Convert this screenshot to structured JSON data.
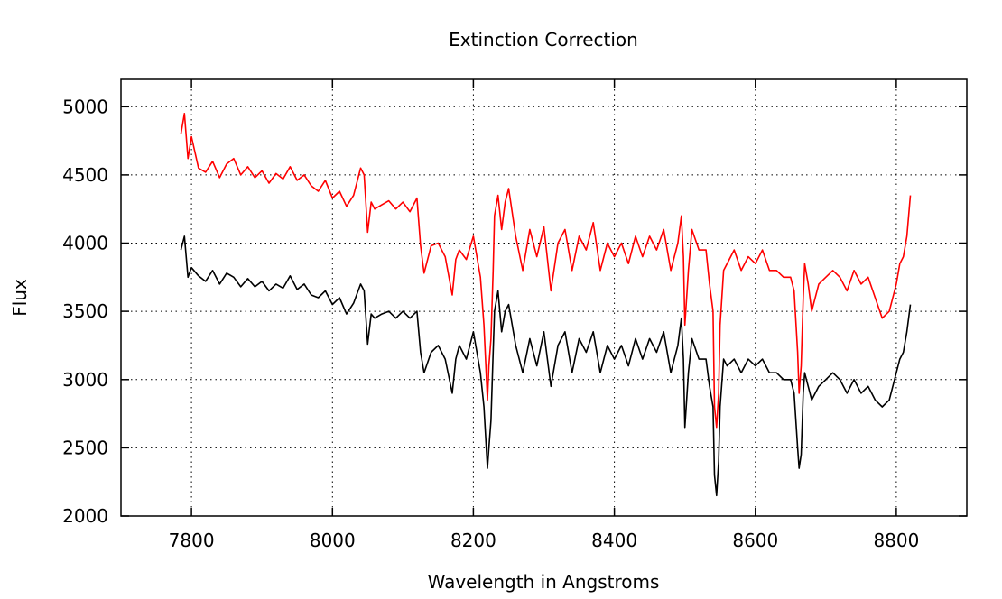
{
  "chart_data": {
    "type": "line",
    "title": "Extinction Correction",
    "xlabel": "Wavelength in Angstroms",
    "ylabel": "Flux",
    "xlim": [
      7700,
      8900
    ],
    "ylim": [
      2000,
      5200
    ],
    "xticks": [
      7800,
      8000,
      8200,
      8400,
      8600,
      8800
    ],
    "yticks": [
      2000,
      2500,
      3000,
      3500,
      4000,
      4500,
      5000
    ],
    "grid": true,
    "legend": "none",
    "series": [
      {
        "color": "#ff0000",
        "x": [
          7785,
          7790,
          7795,
          7800,
          7810,
          7820,
          7830,
          7840,
          7850,
          7860,
          7870,
          7880,
          7890,
          7900,
          7910,
          7920,
          7930,
          7940,
          7950,
          7960,
          7970,
          7980,
          7990,
          8000,
          8010,
          8020,
          8030,
          8040,
          8045,
          8050,
          8055,
          8060,
          8070,
          8080,
          8090,
          8100,
          8110,
          8120,
          8125,
          8130,
          8140,
          8150,
          8160,
          8170,
          8175,
          8180,
          8190,
          8200,
          8205,
          8210,
          8215,
          8220,
          8222,
          8225,
          8228,
          8230,
          8235,
          8240,
          8245,
          8250,
          8260,
          8270,
          8280,
          8290,
          8300,
          8310,
          8320,
          8330,
          8340,
          8350,
          8360,
          8370,
          8380,
          8390,
          8400,
          8410,
          8420,
          8430,
          8440,
          8450,
          8460,
          8470,
          8480,
          8490,
          8495,
          8498,
          8500,
          8505,
          8510,
          8520,
          8530,
          8535,
          8540,
          8542,
          8545,
          8548,
          8550,
          8555,
          8560,
          8570,
          8580,
          8590,
          8600,
          8610,
          8620,
          8630,
          8640,
          8650,
          8655,
          8660,
          8662,
          8665,
          8668,
          8670,
          8675,
          8680,
          8690,
          8700,
          8710,
          8720,
          8730,
          8740,
          8750,
          8760,
          8770,
          8780,
          8790,
          8800,
          8805,
          8810,
          8815,
          8820
        ],
        "y": [
          4800,
          4950,
          4620,
          4780,
          4550,
          4520,
          4600,
          4480,
          4580,
          4620,
          4500,
          4560,
          4480,
          4530,
          4440,
          4510,
          4470,
          4560,
          4460,
          4500,
          4420,
          4380,
          4460,
          4330,
          4380,
          4270,
          4350,
          4550,
          4500,
          4080,
          4300,
          4250,
          4280,
          4310,
          4250,
          4300,
          4230,
          4330,
          3980,
          3780,
          3980,
          4000,
          3900,
          3620,
          3880,
          3950,
          3880,
          4050,
          3900,
          3750,
          3400,
          2850,
          3100,
          3300,
          3800,
          4200,
          4350,
          4100,
          4300,
          4400,
          4050,
          3800,
          4100,
          3900,
          4120,
          3650,
          4000,
          4100,
          3800,
          4050,
          3950,
          4150,
          3800,
          4000,
          3900,
          4000,
          3850,
          4050,
          3900,
          4050,
          3950,
          4100,
          3800,
          4000,
          4200,
          3900,
          3400,
          3800,
          4100,
          3950,
          3950,
          3700,
          3500,
          2800,
          2650,
          2900,
          3400,
          3800,
          3850,
          3950,
          3800,
          3900,
          3850,
          3950,
          3800,
          3800,
          3750,
          3750,
          3650,
          3200,
          2900,
          3100,
          3600,
          3850,
          3700,
          3500,
          3700,
          3750,
          3800,
          3750,
          3650,
          3800,
          3700,
          3750,
          3600,
          3450,
          3500,
          3700,
          3850,
          3900,
          4050,
          4350
        ]
      },
      {
        "color": "#000000",
        "x": [
          7785,
          7790,
          7795,
          7800,
          7810,
          7820,
          7830,
          7840,
          7850,
          7860,
          7870,
          7880,
          7890,
          7900,
          7910,
          7920,
          7930,
          7940,
          7950,
          7960,
          7970,
          7980,
          7990,
          8000,
          8010,
          8020,
          8030,
          8040,
          8045,
          8050,
          8055,
          8060,
          8070,
          8080,
          8090,
          8100,
          8110,
          8120,
          8125,
          8130,
          8140,
          8150,
          8160,
          8170,
          8175,
          8180,
          8190,
          8200,
          8205,
          8210,
          8215,
          8220,
          8222,
          8225,
          8228,
          8230,
          8235,
          8240,
          8245,
          8250,
          8260,
          8270,
          8280,
          8290,
          8300,
          8310,
          8320,
          8330,
          8340,
          8350,
          8360,
          8370,
          8380,
          8390,
          8400,
          8410,
          8420,
          8430,
          8440,
          8450,
          8460,
          8470,
          8480,
          8490,
          8495,
          8498,
          8500,
          8505,
          8510,
          8520,
          8530,
          8535,
          8540,
          8542,
          8545,
          8548,
          8550,
          8555,
          8560,
          8570,
          8580,
          8590,
          8600,
          8610,
          8620,
          8630,
          8640,
          8650,
          8655,
          8660,
          8662,
          8665,
          8668,
          8670,
          8675,
          8680,
          8690,
          8700,
          8710,
          8720,
          8730,
          8740,
          8750,
          8760,
          8770,
          8780,
          8790,
          8800,
          8805,
          8810,
          8815,
          8820
        ],
        "y": [
          3950,
          4050,
          3750,
          3820,
          3760,
          3720,
          3800,
          3700,
          3780,
          3750,
          3680,
          3740,
          3680,
          3720,
          3650,
          3700,
          3670,
          3760,
          3660,
          3700,
          3620,
          3600,
          3650,
          3550,
          3600,
          3480,
          3560,
          3700,
          3650,
          3260,
          3480,
          3450,
          3480,
          3500,
          3450,
          3500,
          3450,
          3500,
          3200,
          3050,
          3200,
          3250,
          3150,
          2900,
          3150,
          3250,
          3150,
          3350,
          3200,
          3050,
          2800,
          2350,
          2500,
          2700,
          3200,
          3500,
          3650,
          3350,
          3500,
          3550,
          3250,
          3050,
          3300,
          3100,
          3350,
          2950,
          3250,
          3350,
          3050,
          3300,
          3200,
          3350,
          3050,
          3250,
          3150,
          3250,
          3100,
          3300,
          3150,
          3300,
          3200,
          3350,
          3050,
          3250,
          3450,
          3150,
          2650,
          3050,
          3300,
          3150,
          3150,
          2950,
          2800,
          2300,
          2150,
          2400,
          2800,
          3150,
          3100,
          3150,
          3050,
          3150,
          3100,
          3150,
          3050,
          3050,
          3000,
          3000,
          2900,
          2500,
          2350,
          2450,
          2900,
          3050,
          2950,
          2850,
          2950,
          3000,
          3050,
          3000,
          2900,
          3000,
          2900,
          2950,
          2850,
          2800,
          2850,
          3050,
          3150,
          3200,
          3350,
          3550
        ]
      }
    ]
  }
}
